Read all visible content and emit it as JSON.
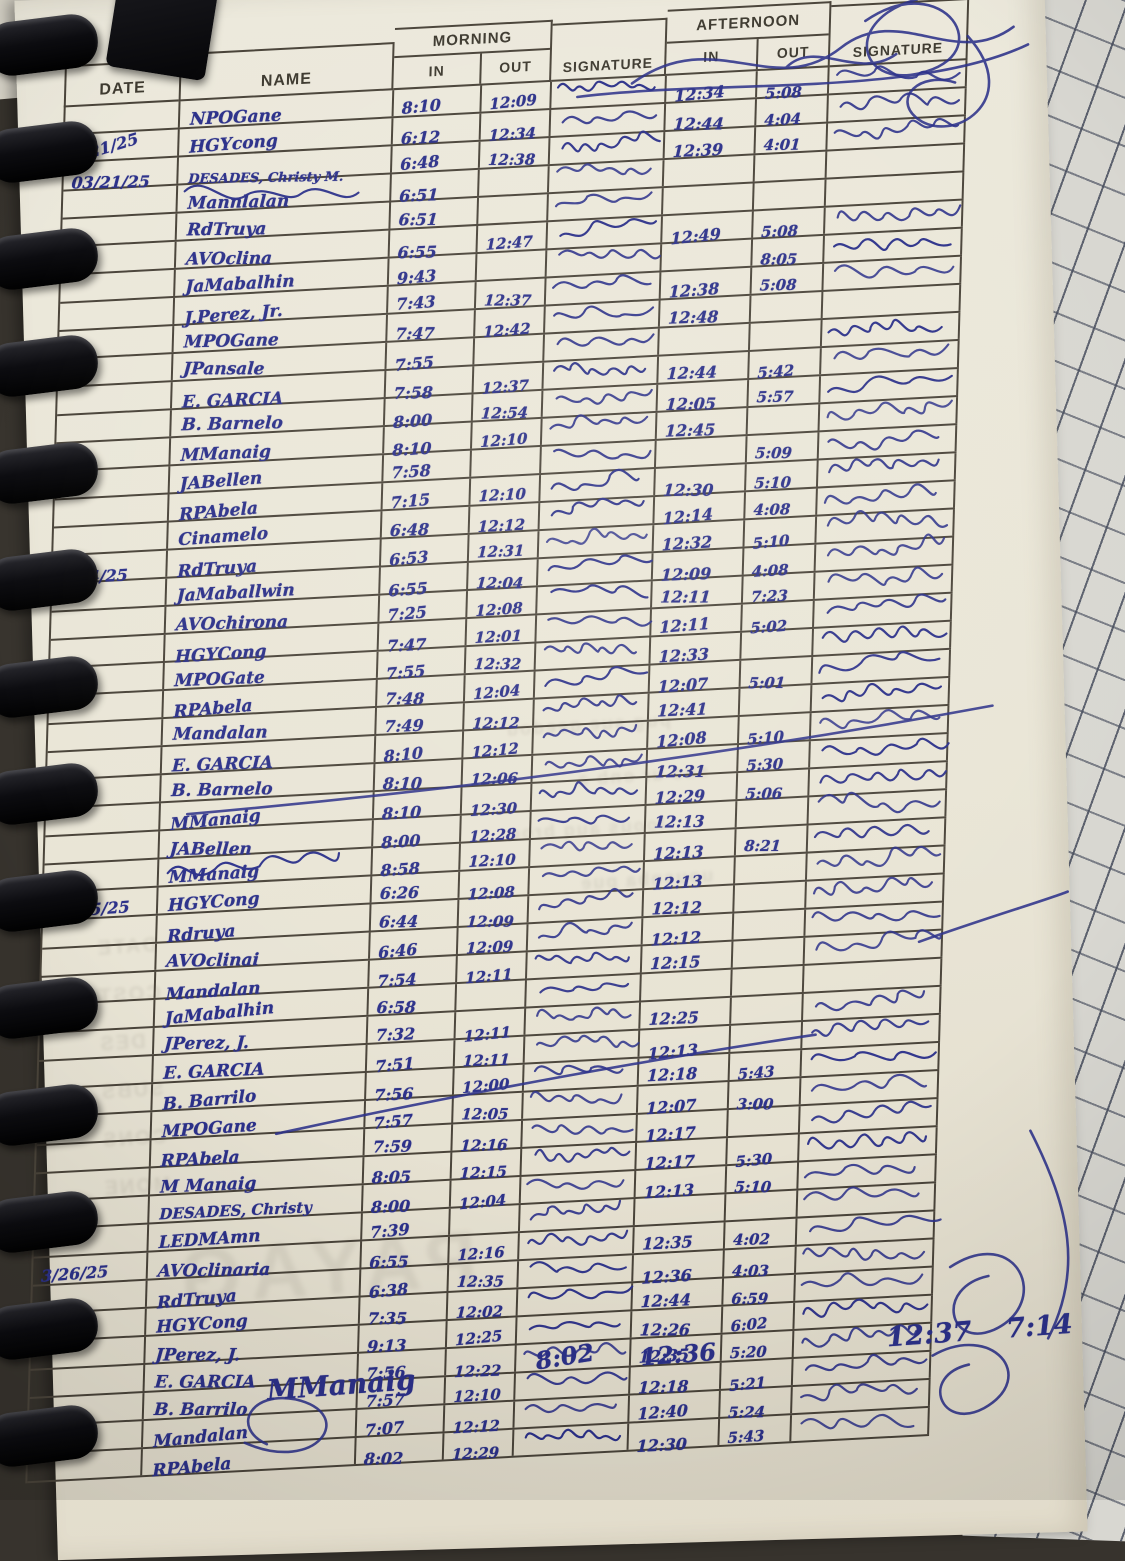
{
  "labels": {
    "date": "DATE",
    "name": "NAME",
    "morning": "MORNING",
    "afternoon": "AFTERNOON",
    "in": "IN",
    "out": "OUT",
    "signature": "SIGNATURE"
  },
  "ink_color": "#2c318a",
  "line_color": "#4a443a",
  "paper_color": "#e9e5d6",
  "rows": [
    {
      "date": "",
      "name": "NPOGane",
      "min": "8:10",
      "mout": "12:09",
      "ain": "12:34",
      "aout": "5:08",
      "sig1": 1,
      "sig2": 1
    },
    {
      "date": "3/21/25",
      "dateSlant": 1,
      "name": "HGYcong",
      "min": "6:12",
      "mout": "12:34",
      "ain": "12:44",
      "aout": "4:04",
      "sig1": 1,
      "sig2": 1
    },
    {
      "date": "03/21/25",
      "name": "DESADES, Christy M.",
      "min": "6:48",
      "mout": "12:38",
      "ain": "12:39",
      "aout": "4:01",
      "sig1": 1,
      "sig2": 1
    },
    {
      "date": "",
      "name": "Mannlalan",
      "min": "6:51",
      "mout": "",
      "ain": "",
      "aout": "",
      "sig1": 1,
      "sig2": 0,
      "crossed": 1
    },
    {
      "date": "",
      "name": "RdTruya",
      "min": "6:51",
      "mout": "",
      "ain": "",
      "aout": "",
      "sig1": 1,
      "sig2": 0
    },
    {
      "date": "",
      "name": "AVOclina",
      "min": "6:55",
      "mout": "12:47",
      "ain": "12:49",
      "aout": "5:08",
      "sig1": 1,
      "sig2": 1
    },
    {
      "date": "",
      "name": "JaMabalhin",
      "min": "9:43",
      "mout": "",
      "ain": "",
      "aout": "8:05",
      "sig1": 1,
      "sig2": 1
    },
    {
      "date": "",
      "name": "J.Perez, Jr.",
      "min": "7:43",
      "mout": "12:37",
      "ain": "12:38",
      "aout": "5:08",
      "sig1": 1,
      "sig2": 1
    },
    {
      "date": "",
      "name": "MPOGane",
      "min": "7:47",
      "mout": "12:42",
      "ain": "12:48",
      "aout": "",
      "sig1": 1,
      "sig2": 0
    },
    {
      "date": "",
      "name": "JPansale",
      "min": "7:55",
      "mout": "",
      "ain": "",
      "aout": "",
      "sig1": 1,
      "sig2": 1
    },
    {
      "date": "",
      "name": "E. GARCIA",
      "min": "7:58",
      "mout": "12:37",
      "ain": "12:44",
      "aout": "5:42",
      "sig1": 1,
      "sig2": 1
    },
    {
      "date": "",
      "name": "B. Barnelo",
      "min": "8:00",
      "mout": "12:54",
      "ain": "12:05",
      "aout": "5:57",
      "sig1": 1,
      "sig2": 1
    },
    {
      "date": "",
      "name": "MManaig",
      "min": "8:10",
      "mout": "12:10",
      "ain": "12:45",
      "aout": "",
      "sig1": 1,
      "sig2": 1
    },
    {
      "date": "",
      "name": "JABellen",
      "min": "7:58",
      "mout": "",
      "ain": "",
      "aout": "5:09",
      "sig1": 1,
      "sig2": 1
    },
    {
      "date": "",
      "name": "RPAbela",
      "min": "7:15",
      "mout": "12:10",
      "ain": "12:30",
      "aout": "5:10",
      "sig1": 1,
      "sig2": 1
    },
    {
      "date": "",
      "name": "Cinamelo",
      "min": "6:48",
      "mout": "12:12",
      "ain": "12:14",
      "aout": "4:08",
      "sig1": 1,
      "sig2": 1
    },
    {
      "date": "3/24/25",
      "name": "RdTruya",
      "min": "6:53",
      "mout": "12:31",
      "ain": "12:32",
      "aout": "5:10",
      "sig1": 1,
      "sig2": 1
    },
    {
      "date": "",
      "name": "JaMaballwin",
      "min": "6:55",
      "mout": "12:04",
      "ain": "12:09",
      "aout": "4:08",
      "sig1": 1,
      "sig2": 1
    },
    {
      "date": "",
      "name": "AVOchirona",
      "min": "7:25",
      "mout": "12:08",
      "ain": "12:11",
      "aout": "7:23",
      "sig1": 1,
      "sig2": 1
    },
    {
      "date": "",
      "name": "HGYCong",
      "min": "7:47",
      "mout": "12:01",
      "ain": "12:11",
      "aout": "5:02",
      "sig1": 1,
      "sig2": 1
    },
    {
      "date": "",
      "name": "MPOGate",
      "min": "7:55",
      "mout": "12:32",
      "ain": "12:33",
      "aout": "",
      "sig1": 1,
      "sig2": 1
    },
    {
      "date": "",
      "name": "RPAbela",
      "min": "7:48",
      "mout": "12:04",
      "ain": "12:07",
      "aout": "5:01",
      "sig1": 1,
      "sig2": 1
    },
    {
      "date": "",
      "name": "Mandalan",
      "min": "7:49",
      "mout": "12:12",
      "ain": "12:41",
      "aout": "",
      "sig1": 1,
      "sig2": 1
    },
    {
      "date": "",
      "name": "E. GARCIA",
      "min": "8:10",
      "mout": "12:12",
      "ain": "12:08",
      "aout": "5:10",
      "sig1": 1,
      "sig2": 1
    },
    {
      "date": "",
      "name": "B. Barnelo",
      "min": "8:10",
      "mout": "12:06",
      "ain": "12:31",
      "aout": "5:30",
      "sig1": 1,
      "sig2": 1
    },
    {
      "date": "",
      "name": "MManaig",
      "min": "8:10",
      "mout": "12:30",
      "ain": "12:29",
      "aout": "5:06",
      "sig1": 1,
      "sig2": 1
    },
    {
      "date": "",
      "name": "JABellen",
      "min": "8:00",
      "mout": "12:28",
      "ain": "12:13",
      "aout": "",
      "sig1": 1,
      "sig2": 1
    },
    {
      "date": "",
      "name": "MManaig",
      "min": "8:58",
      "mout": "12:10",
      "ain": "12:13",
      "aout": "8:21",
      "sig1": 1,
      "sig2": 1,
      "crossed": 1
    },
    {
      "date": "03/25/25",
      "name": "HGYCong",
      "min": "6:26",
      "mout": "12:08",
      "ain": "12:13",
      "aout": "",
      "sig1": 1,
      "sig2": 1
    },
    {
      "date": "",
      "name": "Rdruya",
      "min": "6:44",
      "mout": "12:09",
      "ain": "12:12",
      "aout": "",
      "sig1": 1,
      "sig2": 1
    },
    {
      "date": "",
      "name": "AVOclinai",
      "min": "6:46",
      "mout": "12:09",
      "ain": "12:12",
      "aout": "",
      "sig1": 1,
      "sig2": 1
    },
    {
      "date": "",
      "name": "Mandalan",
      "min": "7:54",
      "mout": "12:11",
      "ain": "12:15",
      "aout": "",
      "sig1": 1,
      "sig2": 1
    },
    {
      "date": "",
      "name": "JaMabalhin",
      "min": "6:58",
      "mout": "",
      "ain": "",
      "aout": "",
      "sig1": 1,
      "sig2": 0
    },
    {
      "date": "",
      "name": "JPerez, J.",
      "min": "7:32",
      "mout": "12:11",
      "ain": "12:25",
      "aout": "",
      "sig1": 1,
      "sig2": 1
    },
    {
      "date": "",
      "name": "E. GARCIA",
      "min": "7:51",
      "mout": "12:11",
      "ain": "12:13",
      "aout": "",
      "sig1": 1,
      "sig2": 1
    },
    {
      "date": "",
      "name": "B. Barrilo",
      "min": "7:56",
      "mout": "12:00",
      "ain": "12:18",
      "aout": "5:43",
      "sig1": 1,
      "sig2": 1
    },
    {
      "date": "",
      "name": "MPOGane",
      "min": "7:57",
      "mout": "12:05",
      "ain": "12:07",
      "aout": "3:00",
      "sig1": 1,
      "sig2": 1
    },
    {
      "date": "",
      "name": "RPAbela",
      "min": "7:59",
      "mout": "12:16",
      "ain": "12:17",
      "aout": "",
      "sig1": 1,
      "sig2": 1
    },
    {
      "date": "",
      "name": "M Manaig",
      "min": "8:05",
      "mout": "12:15",
      "ain": "12:17",
      "aout": "5:30",
      "sig1": 1,
      "sig2": 1
    },
    {
      "date": "",
      "name": "DESADES, Christy",
      "min": "8:00",
      "mout": "12:04",
      "ain": "12:13",
      "aout": "5:10",
      "sig1": 1,
      "sig2": 1
    },
    {
      "date": "",
      "name": "LEDMAmn",
      "min": "7:39",
      "mout": "",
      "ain": "",
      "aout": "",
      "sig1": 1,
      "sig2": 1
    },
    {
      "date": "3/26/25",
      "name": "AVOclinaria",
      "min": "6:55",
      "mout": "12:16",
      "ain": "12:35",
      "aout": "4:02",
      "sig1": 1,
      "sig2": 1
    },
    {
      "date": "",
      "name": "RdTruya",
      "min": "6:38",
      "mout": "12:35",
      "ain": "12:36",
      "aout": "4:03",
      "sig1": 1,
      "sig2": 1
    },
    {
      "date": "",
      "name": "HGYCong",
      "min": "7:35",
      "mout": "12:02",
      "ain": "12:44",
      "aout": "6:59",
      "sig1": 1,
      "sig2": 1
    },
    {
      "date": "",
      "name": "JPerez, J.",
      "min": "9:13",
      "mout": "12:25",
      "ain": "12:26",
      "aout": "6:02",
      "sig1": 1,
      "sig2": 1
    },
    {
      "date": "",
      "name": "E. GARCIA",
      "min": "7:56",
      "mout": "12:22",
      "ain": "12:35",
      "aout": "5:20",
      "sig1": 1,
      "sig2": 1
    },
    {
      "date": "",
      "name": "B. Barrilo",
      "min": "7:57",
      "mout": "12:10",
      "ain": "12:18",
      "aout": "5:21",
      "sig1": 1,
      "sig2": 1
    },
    {
      "date": "",
      "name": "Mandalan",
      "min": "7:07",
      "mout": "12:12",
      "ain": "12:40",
      "aout": "5:24",
      "sig1": 1,
      "sig2": 1
    },
    {
      "date": "",
      "name": "RPAbela",
      "min": "8:02",
      "mout": "12:29",
      "ain": "12:30",
      "aout": "5:43",
      "sig1": 1,
      "sig2": 1
    }
  ],
  "footer_row": {
    "name": "MManaig",
    "min": "8:02",
    "mout": "12:36",
    "ain": "12:37",
    "aout": "7:14"
  },
  "ghost": {
    "watermark": "PAYAG",
    "left_labels": [
      "DATE",
      "COST",
      "DES",
      "SUBS",
      "CONS",
      "MONE"
    ],
    "lines": [
      "pug sue qeedou",
      "suo ur onb a",
      "loous auq broc",
      "uousnba pue"
    ]
  }
}
